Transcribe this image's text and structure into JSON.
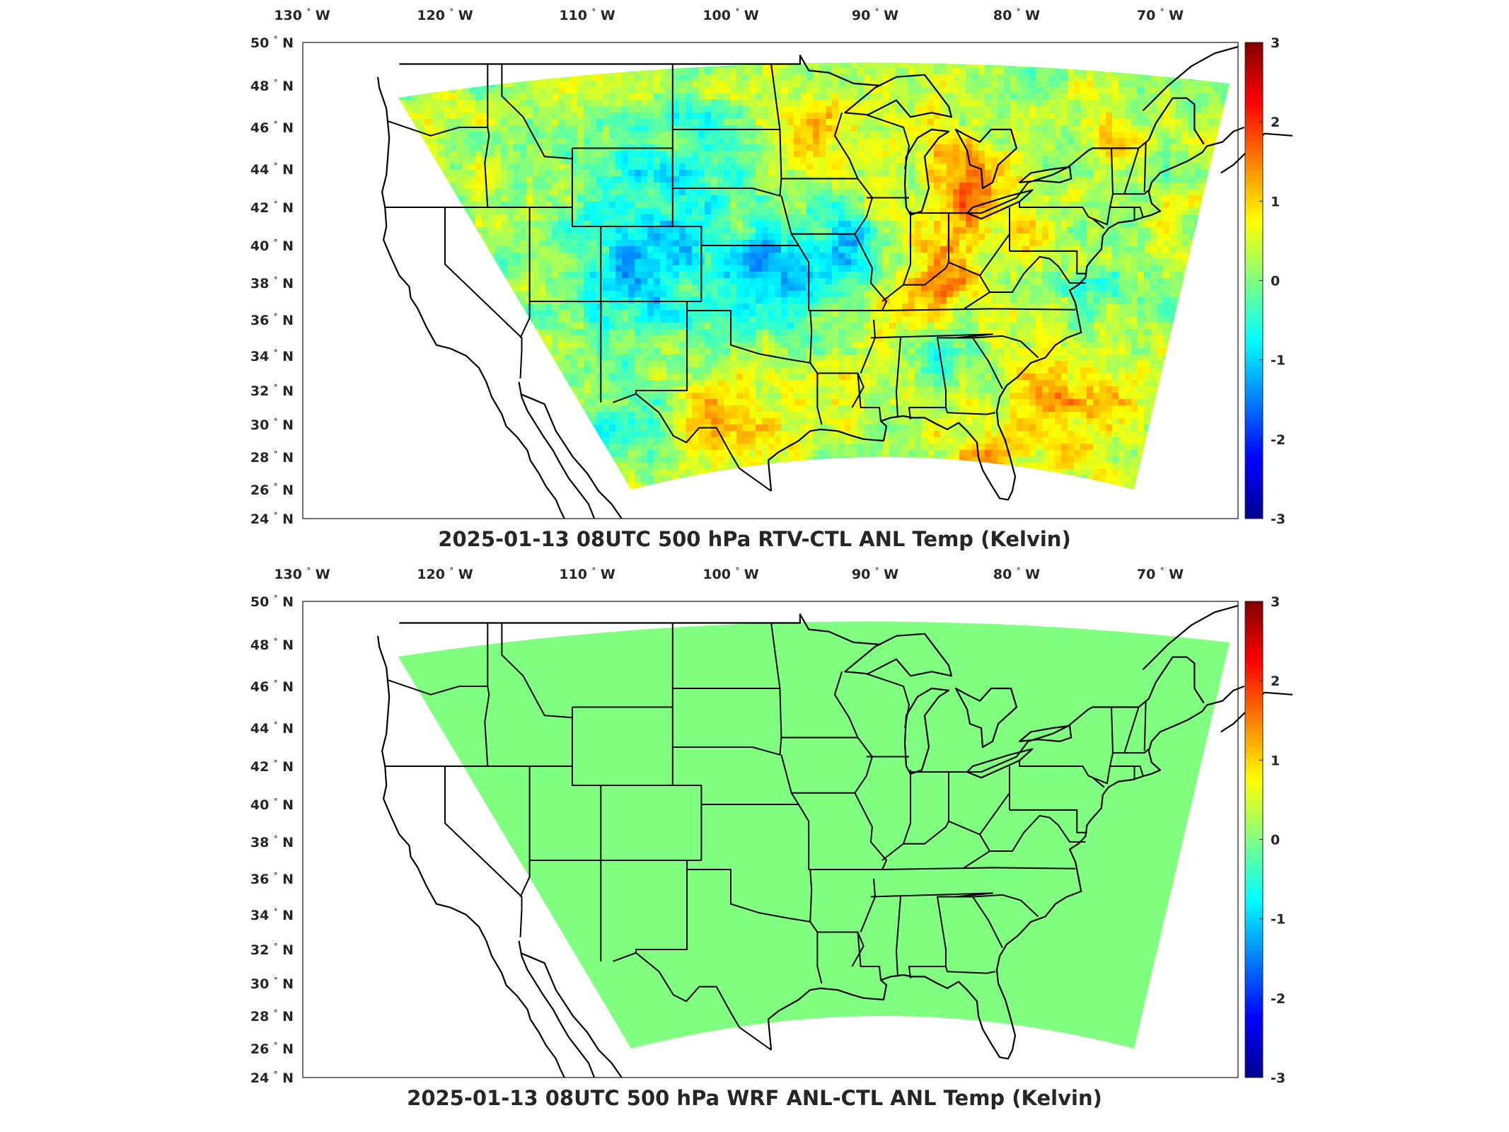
{
  "lon_ticks": [
    {
      "label": "130",
      "hem": "W",
      "value": -130
    },
    {
      "label": "120",
      "hem": "W",
      "value": -120
    },
    {
      "label": "110",
      "hem": "W",
      "value": -110
    },
    {
      "label": "100",
      "hem": "W",
      "value": -100
    },
    {
      "label": "90",
      "hem": "W",
      "value": -90
    },
    {
      "label": "80",
      "hem": "W",
      "value": -80
    },
    {
      "label": "70",
      "hem": "W",
      "value": -70
    }
  ],
  "lat_ticks": [
    {
      "label": "50",
      "hem": "N",
      "value": 50
    },
    {
      "label": "48",
      "hem": "N",
      "value": 48
    },
    {
      "label": "46",
      "hem": "N",
      "value": 46
    },
    {
      "label": "44",
      "hem": "N",
      "value": 44
    },
    {
      "label": "42",
      "hem": "N",
      "value": 42
    },
    {
      "label": "40",
      "hem": "N",
      "value": 40
    },
    {
      "label": "38",
      "hem": "N",
      "value": 38
    },
    {
      "label": "36",
      "hem": "N",
      "value": 36
    },
    {
      "label": "34",
      "hem": "N",
      "value": 34
    },
    {
      "label": "32",
      "hem": "N",
      "value": 32
    },
    {
      "label": "30",
      "hem": "N",
      "value": 30
    },
    {
      "label": "28",
      "hem": "N",
      "value": 28
    },
    {
      "label": "26",
      "hem": "N",
      "value": 26
    },
    {
      "label": "24",
      "hem": "N",
      "value": 24
    }
  ],
  "colorbar_ticks": [
    "3",
    "2",
    "1",
    "0",
    "-1",
    "-2",
    "-3"
  ],
  "colorbar_range": [
    -3,
    3
  ],
  "colormap": [
    "#00008f",
    "#0000ff",
    "#0080ff",
    "#00ffff",
    "#80ff80",
    "#ffff00",
    "#ff8000",
    "#ff0000",
    "#800000"
  ],
  "panels": [
    {
      "title": "2025-01-13 08UTC 500 hPa RTV-CTL ANL Temp (Kelvin)",
      "field": "increment-difference"
    },
    {
      "title": "2025-01-13 08UTC 500 hPa WRF ANL-CTL ANL Temp (Kelvin)",
      "field": "uniform-zero",
      "uniform_value": 0
    }
  ],
  "colors": {
    "zero_green": "#80ff80",
    "map_lines": "#000000",
    "axes": "#262626"
  }
}
